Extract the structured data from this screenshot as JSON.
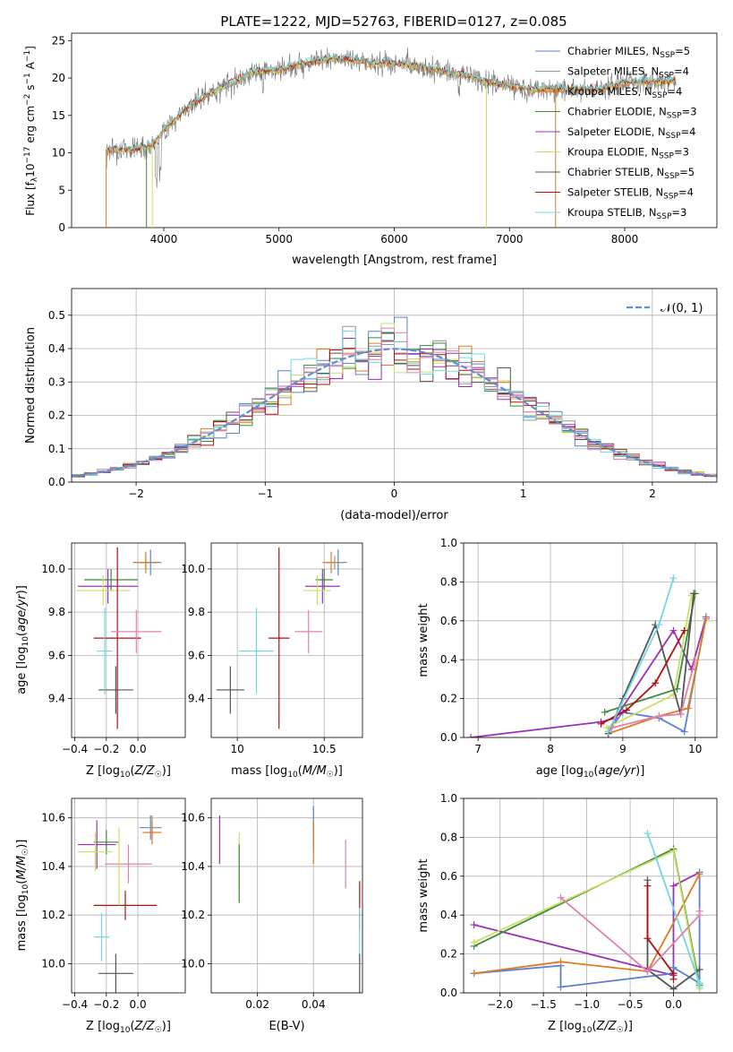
{
  "colors": {
    "Chabrier MILES": "#5b7fd6",
    "Salpeter MILES": "#8a9a9a",
    "Kroupa MILES": "#e07a20",
    "Chabrier ELODIE": "#3a8a3a",
    "Salpeter ELODIE": "#9b30b8",
    "Kroupa ELODIE": "#c8e060",
    "Chabrier STELIB": "#555555",
    "Salpeter STELIB": "#b01010",
    "Kroupa STELIB": "#70d8e0",
    "pink": "#e080b0",
    "normal": "#5b8fd6"
  },
  "chart_data": [
    {
      "id": "spectrum",
      "type": "line",
      "title": "PLATE=1222, MJD=52763, FIBERID=0127, z=0.085",
      "xlabel": "wavelength [Angstrom, rest frame]",
      "ylabel": "Flux [f_λ10^-17 erg cm^-2 s^-1 A^-1]",
      "xlim": [
        3200,
        8800
      ],
      "ylim": [
        0,
        26
      ],
      "xticks": [
        "4000",
        "5000",
        "6000",
        "7000",
        "8000"
      ],
      "yticks": [
        "0",
        "5",
        "10",
        "15",
        "20",
        "25"
      ],
      "legend": [
        {
          "base": "Chabrier MILES, N",
          "sub": "SSP",
          "val": "=5"
        },
        {
          "base": "Salpeter MILES, N",
          "sub": "SSP",
          "val": "=4"
        },
        {
          "base": "Kroupa MILES, N",
          "sub": "SSP",
          "val": "=4"
        },
        {
          "base": "Chabrier ELODIE, N",
          "sub": "SSP",
          "val": "=3"
        },
        {
          "base": "Salpeter ELODIE, N",
          "sub": "SSP",
          "val": "=4"
        },
        {
          "base": "Kroupa ELODIE, N",
          "sub": "SSP",
          "val": "=3"
        },
        {
          "base": "Chabrier STELIB, N",
          "sub": "SSP",
          "val": "=5"
        },
        {
          "base": "Salpeter STELIB, N",
          "sub": "SSP",
          "val": "=4"
        },
        {
          "base": "Kroupa STELIB, N",
          "sub": "SSP",
          "val": "=3"
        }
      ],
      "legend_position": "right",
      "continuum": [
        [
          3500,
          10.5
        ],
        [
          3700,
          10.5
        ],
        [
          3900,
          11
        ],
        [
          4000,
          13
        ],
        [
          4200,
          16
        ],
        [
          4400,
          18
        ],
        [
          4600,
          19.5
        ],
        [
          4800,
          21
        ],
        [
          5000,
          21
        ],
        [
          5200,
          22
        ],
        [
          5400,
          22.5
        ],
        [
          5600,
          22.5
        ],
        [
          5800,
          22
        ],
        [
          6000,
          22
        ],
        [
          6200,
          21.5
        ],
        [
          6400,
          21
        ],
        [
          6600,
          20.5
        ],
        [
          6800,
          19.5
        ],
        [
          7000,
          19
        ],
        [
          7200,
          18.5
        ],
        [
          7400,
          18.5
        ],
        [
          7600,
          18.5
        ],
        [
          7800,
          18.5
        ],
        [
          8000,
          19.5
        ],
        [
          8200,
          19.5
        ],
        [
          8400,
          19.5
        ]
      ]
    },
    {
      "id": "residuals",
      "type": "histogram",
      "xlabel": "(data-model)/error",
      "ylabel": "Normed distribution",
      "xlim": [
        -2.5,
        2.5
      ],
      "ylim": [
        0,
        0.58
      ],
      "xticks": [
        "−2",
        "−1",
        "0",
        "1",
        "2"
      ],
      "yticks": [
        "0.0",
        "0.1",
        "0.2",
        "0.3",
        "0.4",
        "0.5"
      ],
      "legend": "𝒩(0, 1)",
      "legend_position": "top-right",
      "bin_width": 0.1,
      "bins_start": -2.5
    },
    {
      "id": "age_vs_Z",
      "type": "errorbar",
      "xlabel": "Z [log₁₀(Z/Z☉)]",
      "ylabel": "age  [log₁₀(age/yr)]",
      "xlim": [
        -0.42,
        0.3
      ],
      "ylim": [
        9.22,
        10.12
      ],
      "xticks": [
        "−0.4",
        "−0.2",
        "0.0"
      ],
      "yticks": [
        "9.4",
        "9.6",
        "9.8",
        "10.0"
      ],
      "points": [
        {
          "name": "Chabrier MILES",
          "x": 0.08,
          "y": 10.03,
          "xerr": 0.07,
          "yerr": 0.06
        },
        {
          "name": "Salpeter MILES",
          "x": 0.05,
          "y": 10.03,
          "xerr": 0.08,
          "yerr": 0.03
        },
        {
          "name": "Kroupa MILES",
          "x": 0.05,
          "y": 10.03,
          "xerr": 0.08,
          "yerr": 0.05
        },
        {
          "name": "Chabrier ELODIE",
          "x": -0.17,
          "y": 9.95,
          "xerr": 0.17,
          "yerr": 0.05
        },
        {
          "name": "Salpeter ELODIE",
          "x": -0.19,
          "y": 9.92,
          "xerr": 0.19,
          "yerr": 0.08
        },
        {
          "name": "Kroupa ELODIE",
          "x": -0.22,
          "y": 9.9,
          "xerr": 0.17,
          "yerr": 0.07
        },
        {
          "name": "Chabrier STELIB",
          "x": -0.14,
          "y": 9.44,
          "xerr": 0.11,
          "yerr": 0.11
        },
        {
          "name": "Salpeter STELIB",
          "x": -0.13,
          "y": 9.68,
          "xerr": 0.15,
          "yerr": 0.42
        },
        {
          "name": "Kroupa STELIB",
          "x": -0.21,
          "y": 9.62,
          "xerr": 0.05,
          "yerr": 0.2
        },
        {
          "name": "pink",
          "x": -0.01,
          "y": 9.71,
          "xerr": 0.16,
          "yerr": 0.1
        }
      ]
    },
    {
      "id": "age_vs_mass",
      "type": "errorbar",
      "xlabel": "mass [log₁₀(M/M☉)]",
      "ylabel": "",
      "xlim": [
        9.85,
        10.72
      ],
      "ylim": [
        9.22,
        10.12
      ],
      "xticks": [
        "10",
        "10.5"
      ],
      "yticks": [
        "9.4",
        "9.6",
        "9.8",
        "10.0"
      ],
      "points": [
        {
          "name": "Chabrier MILES",
          "x": 10.58,
          "y": 10.03,
          "xerr": 0.05,
          "yerr": 0.06
        },
        {
          "name": "Salpeter MILES",
          "x": 10.56,
          "y": 10.03,
          "xerr": 0.05,
          "yerr": 0.03
        },
        {
          "name": "Kroupa MILES",
          "x": 10.54,
          "y": 10.03,
          "xerr": 0.05,
          "yerr": 0.05
        },
        {
          "name": "Chabrier ELODIE",
          "x": 10.5,
          "y": 9.95,
          "xerr": 0.05,
          "yerr": 0.05
        },
        {
          "name": "Salpeter ELODIE",
          "x": 10.49,
          "y": 9.92,
          "xerr": 0.1,
          "yerr": 0.08
        },
        {
          "name": "Kroupa ELODIE",
          "x": 10.46,
          "y": 9.9,
          "xerr": 0.08,
          "yerr": 0.07
        },
        {
          "name": "Chabrier STELIB",
          "x": 9.96,
          "y": 9.44,
          "xerr": 0.08,
          "yerr": 0.11
        },
        {
          "name": "Salpeter STELIB",
          "x": 10.24,
          "y": 9.68,
          "xerr": 0.06,
          "yerr": 0.42
        },
        {
          "name": "Kroupa STELIB",
          "x": 10.11,
          "y": 9.62,
          "xerr": 0.1,
          "yerr": 0.2
        },
        {
          "name": "pink",
          "x": 10.41,
          "y": 9.71,
          "xerr": 0.08,
          "yerr": 0.1
        }
      ]
    },
    {
      "id": "mass_vs_Z",
      "type": "errorbar",
      "xlabel": "Z [log₁₀(Z/Z☉)]",
      "ylabel": "mass [log₁₀(M/M☉)]",
      "xlim": [
        -0.42,
        0.3
      ],
      "ylim": [
        9.88,
        10.68
      ],
      "xticks": [
        "−0.4",
        "−0.2",
        "0.0"
      ],
      "yticks": [
        "10.0",
        "10.2",
        "10.4",
        "10.6"
      ],
      "points": [
        {
          "name": "Chabrier MILES",
          "x": 0.08,
          "y": 10.56,
          "xerr": 0.07,
          "yerr": 0.05
        },
        {
          "name": "Salpeter MILES",
          "x": 0.09,
          "y": 10.56,
          "xerr": 0.05,
          "yerr": 0.05
        },
        {
          "name": "Kroupa MILES",
          "x": 0.09,
          "y": 10.54,
          "xerr": 0.06,
          "yerr": 0.05
        },
        {
          "name": "Chabrier ELODIE",
          "x": -0.2,
          "y": 10.5,
          "xerr": 0.08,
          "yerr": 0.05
        },
        {
          "name": "Salpeter ELODIE",
          "x": -0.26,
          "y": 10.49,
          "xerr": 0.12,
          "yerr": 0.1
        },
        {
          "name": "Kroupa ELODIE",
          "x": -0.27,
          "y": 10.46,
          "xerr": 0.11,
          "yerr": 0.08
        },
        {
          "name": "Chabrier STELIB",
          "x": -0.14,
          "y": 9.96,
          "xerr": 0.11,
          "yerr": 0.08
        },
        {
          "name": "Salpeter STELIB",
          "x": -0.08,
          "y": 10.24,
          "xerr": 0.2,
          "yerr": 0.06
        },
        {
          "name": "Kroupa STELIB",
          "x": -0.23,
          "y": 10.11,
          "xerr": 0.05,
          "yerr": 0.1
        },
        {
          "name": "pink",
          "x": -0.06,
          "y": 10.41,
          "xerr": 0.15,
          "yerr": 0.08
        },
        {
          "name": "Kroupa ELODIE",
          "x": -0.12,
          "y": 10.4,
          "xerr": 0,
          "yerr": 0.16
        }
      ]
    },
    {
      "id": "mass_vs_ebv",
      "type": "errorbar",
      "xlabel": "E(B-V)",
      "ylabel": "",
      "xlim": [
        0.0035,
        0.0575
      ],
      "ylim": [
        9.88,
        10.68
      ],
      "xticks": [
        "0.02",
        "0.04"
      ],
      "yticks": [
        "10.0",
        "10.2",
        "10.4",
        "10.6"
      ],
      "points": [
        {
          "name": "Chabrier MILES",
          "x": 0.04,
          "y": 10.56,
          "xerr": 0,
          "yerr": 0.09
        },
        {
          "name": "Kroupa MILES",
          "x": 0.04,
          "y": 10.5,
          "xerr": 0,
          "yerr": 0.09
        },
        {
          "name": "Salpeter ELODIE",
          "x": 0.0065,
          "y": 10.51,
          "xerr": 0,
          "yerr": 0.1
        },
        {
          "name": "Kroupa ELODIE",
          "x": 0.0135,
          "y": 10.42,
          "xerr": 0,
          "yerr": 0.12
        },
        {
          "name": "Chabrier ELODIE",
          "x": 0.0135,
          "y": 10.37,
          "xerr": 0,
          "yerr": 0.12
        },
        {
          "name": "pink",
          "x": 0.0515,
          "y": 10.41,
          "xerr": 0,
          "yerr": 0.1
        },
        {
          "name": "Salpeter STELIB",
          "x": 0.0565,
          "y": 10.24,
          "xerr": 0,
          "yerr": 0.1
        },
        {
          "name": "Kroupa STELIB",
          "x": 0.0565,
          "y": 10.11,
          "xerr": 0,
          "yerr": 0.12
        },
        {
          "name": "Chabrier STELIB",
          "x": 0.0565,
          "y": 9.96,
          "xerr": 0,
          "yerr": 0.08
        }
      ]
    },
    {
      "id": "weight_vs_age",
      "type": "line",
      "xlabel": "age  [log₁₀(age/yr)]",
      "ylabel": "mass weight",
      "xlim": [
        6.8,
        10.3
      ],
      "ylim": [
        0,
        1
      ],
      "xticks": [
        "7",
        "8",
        "9",
        "10"
      ],
      "yticks": [
        "0.0",
        "0.2",
        "0.4",
        "0.6",
        "0.8",
        "1.0"
      ],
      "series": [
        {
          "name": "Salpeter ELODIE",
          "x": [
            6.9,
            8.7,
            8.9,
            9.7,
            9.95,
            10.15
          ],
          "y": [
            0.0,
            0.08,
            0.1,
            0.55,
            0.35,
            0.62
          ]
        },
        {
          "name": "Chabrier MILES",
          "x": [
            8.8,
            9.0,
            9.5,
            9.85,
            10.15
          ],
          "y": [
            0.03,
            0.13,
            0.1,
            0.03,
            0.62
          ]
        },
        {
          "name": "Kroupa MILES",
          "x": [
            8.8,
            9.5,
            9.9,
            10.15
          ],
          "y": [
            0.02,
            0.11,
            0.15,
            0.61
          ]
        },
        {
          "name": "Chabrier ELODIE",
          "x": [
            8.75,
            9.75,
            10.0
          ],
          "y": [
            0.13,
            0.25,
            0.74
          ]
        },
        {
          "name": "Kroupa ELODIE",
          "x": [
            8.78,
            9.7,
            9.95
          ],
          "y": [
            0.05,
            0.22,
            0.73
          ]
        },
        {
          "name": "Chabrier STELIB",
          "x": [
            8.8,
            9.0,
            9.45,
            9.8,
            9.98
          ],
          "y": [
            0.02,
            0.2,
            0.58,
            0.12,
            0.74
          ]
        },
        {
          "name": "Salpeter STELIB",
          "x": [
            8.7,
            9.05,
            9.45,
            9.85
          ],
          "y": [
            0.07,
            0.14,
            0.28,
            0.55
          ]
        },
        {
          "name": "Kroupa STELIB",
          "x": [
            8.8,
            9.5,
            9.7
          ],
          "y": [
            0.03,
            0.58,
            0.82
          ]
        },
        {
          "name": "pink",
          "x": [
            8.85,
            9.5,
            9.8,
            10.0
          ],
          "y": [
            0.05,
            0.11,
            0.12,
            0.4
          ]
        }
      ]
    },
    {
      "id": "weight_vs_Z",
      "type": "line",
      "xlabel": "Z [log₁₀(Z/Z☉)]",
      "ylabel": "mass weight",
      "xlim": [
        -2.42,
        0.5
      ],
      "ylim": [
        0,
        1
      ],
      "xticks": [
        "−2.0",
        "−1.5",
        "−1.0",
        "−0.5",
        "0.0"
      ],
      "yticks": [
        "0.0",
        "0.2",
        "0.4",
        "0.6",
        "0.8",
        "1.0"
      ],
      "series": [
        {
          "name": "Salpeter ELODIE",
          "x": [
            -2.3,
            0.0,
            0.0,
            0.3
          ],
          "y": [
            0.35,
            0.09,
            0.55,
            0.62
          ]
        },
        {
          "name": "Chabrier MILES",
          "x": [
            -2.3,
            -1.3,
            -1.3,
            0.0,
            0.0,
            0.3,
            0.3
          ],
          "y": [
            0.1,
            0.14,
            0.03,
            0.1,
            0.13,
            0.05,
            0.62
          ]
        },
        {
          "name": "Kroupa MILES",
          "x": [
            -2.3,
            -1.3,
            -0.3,
            0.3
          ],
          "y": [
            0.1,
            0.16,
            0.11,
            0.61
          ]
        },
        {
          "name": "Chabrier ELODIE",
          "x": [
            -2.3,
            0.0,
            0.3
          ],
          "y": [
            0.24,
            0.74,
            0.04
          ]
        },
        {
          "name": "Kroupa ELODIE",
          "x": [
            -2.3,
            0.0,
            0.3
          ],
          "y": [
            0.26,
            0.73,
            0.02
          ]
        },
        {
          "name": "Chabrier STELIB",
          "x": [
            -0.3,
            -0.3,
            0.0,
            0.3
          ],
          "y": [
            0.58,
            0.12,
            0.02,
            0.12
          ]
        },
        {
          "name": "Salpeter STELIB",
          "x": [
            -0.3,
            -0.3,
            0.0,
            0.0
          ],
          "y": [
            0.55,
            0.28,
            0.1,
            0.07
          ]
        },
        {
          "name": "Kroupa STELIB",
          "x": [
            -0.3,
            0.3,
            0.3
          ],
          "y": [
            0.82,
            0.05,
            0.03
          ]
        },
        {
          "name": "pink",
          "x": [
            -1.3,
            -0.3,
            0.3,
            0.3
          ],
          "y": [
            0.49,
            0.11,
            0.4,
            0.42
          ]
        }
      ]
    }
  ]
}
